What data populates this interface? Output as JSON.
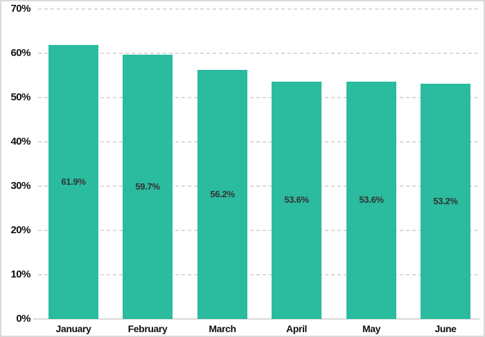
{
  "chart_data": {
    "type": "bar",
    "title": "",
    "xlabel": "",
    "ylabel": "",
    "categories": [
      "January",
      "February",
      "March",
      "April",
      "May",
      "June"
    ],
    "values": [
      61.9,
      59.7,
      56.2,
      53.6,
      53.6,
      53.2
    ],
    "value_labels": [
      "61.9%",
      "59.7%",
      "56.2%",
      "53.6%",
      "53.6%",
      "53.2%"
    ],
    "y_ticks": [
      {
        "value": 0,
        "label": "0%"
      },
      {
        "value": 10,
        "label": "10%"
      },
      {
        "value": 20,
        "label": "20%"
      },
      {
        "value": 30,
        "label": "30%"
      },
      {
        "value": 40,
        "label": "40%"
      },
      {
        "value": 50,
        "label": "50%"
      },
      {
        "value": 60,
        "label": "60%"
      },
      {
        "value": 70,
        "label": "70%"
      }
    ],
    "ylim": [
      0,
      70
    ],
    "legend": "none",
    "grid": "horizontal-dashed",
    "colors": {
      "bar_fill": "#2bbb9e",
      "value_label_text": "#333333",
      "axis_text": "#111111",
      "gridline": "#d9d9d9",
      "border": "#dadada",
      "background": "#ffffff"
    }
  }
}
